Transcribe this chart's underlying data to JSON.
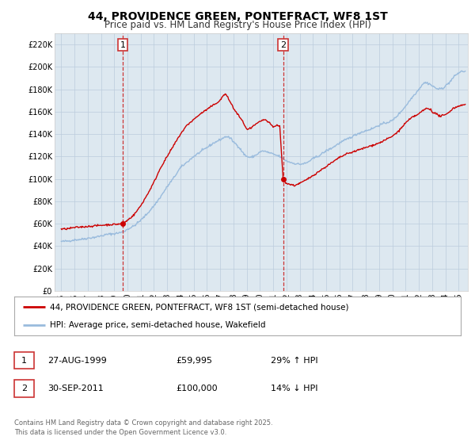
{
  "title": "44, PROVIDENCE GREEN, PONTEFRACT, WF8 1ST",
  "subtitle": "Price paid vs. HM Land Registry's House Price Index (HPI)",
  "legend_line1": "44, PROVIDENCE GREEN, PONTEFRACT, WF8 1ST (semi-detached house)",
  "legend_line2": "HPI: Average price, semi-detached house, Wakefield",
  "footnote": "Contains HM Land Registry data © Crown copyright and database right 2025.\nThis data is licensed under the Open Government Licence v3.0.",
  "sale1_label": "1",
  "sale1_date": "27-AUG-1999",
  "sale1_price": "£59,995",
  "sale1_hpi": "29% ↑ HPI",
  "sale1_year": 1999.65,
  "sale1_value": 59995,
  "sale2_label": "2",
  "sale2_date": "30-SEP-2011",
  "sale2_price": "£100,000",
  "sale2_hpi": "14% ↓ HPI",
  "sale2_year": 2011.75,
  "sale2_value": 100000,
  "line_color_red": "#cc0000",
  "line_color_blue": "#99bbdd",
  "vline_color": "#cc3333",
  "bg_color": "#dde8f0",
  "fig_bg": "#ffffff",
  "grid_color": "#bbccdd",
  "ylim_min": 0,
  "ylim_max": 230000,
  "xlim_start": 1994.5,
  "xlim_end": 2025.7,
  "yticks": [
    0,
    20000,
    40000,
    60000,
    80000,
    100000,
    120000,
    140000,
    160000,
    180000,
    200000,
    220000
  ],
  "ytick_labels": [
    "£0",
    "£20K",
    "£40K",
    "£60K",
    "£80K",
    "£100K",
    "£120K",
    "£140K",
    "£160K",
    "£180K",
    "£200K",
    "£220K"
  ],
  "xticks": [
    1995,
    1996,
    1997,
    1998,
    1999,
    2000,
    2001,
    2002,
    2003,
    2004,
    2005,
    2006,
    2007,
    2008,
    2009,
    2010,
    2011,
    2012,
    2013,
    2014,
    2015,
    2016,
    2017,
    2018,
    2019,
    2020,
    2021,
    2022,
    2023,
    2024,
    2025
  ],
  "title_fontsize": 10,
  "subtitle_fontsize": 8.5,
  "tick_fontsize": 7,
  "legend_fontsize": 7.5,
  "table_fontsize": 8,
  "footnote_fontsize": 6
}
